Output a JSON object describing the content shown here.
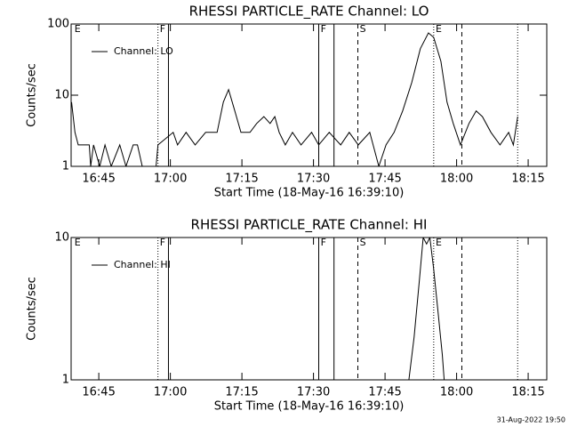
{
  "footer": "31-Aug-2022 19:50",
  "chart_data": [
    {
      "type": "line",
      "title": "RHESSI PARTICLE_RATE Channel: LO",
      "xlabel": "Start Time (18-May-16 16:39:10)",
      "ylabel": "Counts/sec",
      "log_y": true,
      "legend": "upper-left",
      "xlim": [
        999.2,
        1098.9
      ],
      "ylim": [
        1,
        100
      ],
      "xticks": [
        {
          "value": 1005,
          "label": "16:45"
        },
        {
          "value": 1020,
          "label": "17:00"
        },
        {
          "value": 1035,
          "label": "17:15"
        },
        {
          "value": 1050,
          "label": "17:30"
        },
        {
          "value": 1065,
          "label": "17:45"
        },
        {
          "value": 1080,
          "label": "18:00"
        },
        {
          "value": 1095,
          "label": "18:15"
        }
      ],
      "yticks": [
        1,
        10,
        100
      ],
      "flag_lines": [
        {
          "x": 1017.4,
          "style": "dotted"
        },
        {
          "x": 1019.6,
          "style": "solid"
        },
        {
          "x": 1051.1,
          "style": "solid"
        },
        {
          "x": 1054.3,
          "style": "solid"
        },
        {
          "x": 1059.3,
          "style": "dashed"
        },
        {
          "x": 1075.2,
          "style": "dotted"
        },
        {
          "x": 1081.1,
          "style": "dashed"
        },
        {
          "x": 1092.8,
          "style": "dotted"
        }
      ],
      "flag_labels": [
        {
          "x": 999.9,
          "label": "E"
        },
        {
          "x": 1017.8,
          "label": "F"
        },
        {
          "x": 1051.5,
          "label": "F"
        },
        {
          "x": 1059.7,
          "label": "S"
        },
        {
          "x": 1075.6,
          "label": "E"
        }
      ],
      "x": [
        999.3,
        1000.0,
        1000.7,
        1003.0,
        1003.3,
        1003.9,
        1005.2,
        1006.3,
        1007.6,
        1009.4,
        1010.7,
        1012.2,
        1013.1,
        1014.1,
        1017.0,
        1017.4,
        1020.6,
        1021.5,
        1023.3,
        1025.2,
        1027.4,
        1029.8,
        1031.1,
        1032.2,
        1033.5,
        1034.8,
        1036.7,
        1038.1,
        1039.6,
        1040.9,
        1041.9,
        1042.8,
        1044.1,
        1045.6,
        1047.4,
        1049.6,
        1051.1,
        1053.3,
        1055.7,
        1057.5,
        1059.4,
        1061.8,
        1063.7,
        1065.2,
        1066.9,
        1068.7,
        1070.6,
        1072.4,
        1074.1,
        1075.2,
        1076.7,
        1078.0,
        1079.3,
        1080.8,
        1082.6,
        1084.1,
        1085.4,
        1087.2,
        1089.1,
        1090.9,
        1091.9,
        1092.8
      ],
      "series": [
        {
          "name": "Channel: LO",
          "color": "#000000",
          "values": [
            8,
            3,
            2,
            2,
            1,
            2,
            1,
            2,
            1,
            2,
            1,
            2,
            2,
            1,
            1,
            2,
            3,
            2,
            3,
            2,
            3,
            3,
            8,
            12,
            6,
            3,
            3,
            4,
            5,
            4,
            5,
            3,
            2,
            3,
            2,
            3,
            2,
            3,
            2,
            3,
            2,
            3,
            1,
            2,
            3,
            6,
            15,
            45,
            75,
            65,
            30,
            8,
            4,
            2,
            4,
            6,
            5,
            3,
            2,
            3,
            2,
            5
          ]
        }
      ]
    },
    {
      "type": "line",
      "title": "RHESSI PARTICLE_RATE Channel: HI",
      "xlabel": "Start Time (18-May-16 16:39:10)",
      "ylabel": "Counts/sec",
      "log_y": true,
      "legend": "upper-left",
      "xlim": [
        999.2,
        1098.9
      ],
      "ylim": [
        1,
        10
      ],
      "xticks": [
        {
          "value": 1005,
          "label": "16:45"
        },
        {
          "value": 1020,
          "label": "17:00"
        },
        {
          "value": 1035,
          "label": "17:15"
        },
        {
          "value": 1050,
          "label": "17:30"
        },
        {
          "value": 1065,
          "label": "17:45"
        },
        {
          "value": 1080,
          "label": "18:00"
        },
        {
          "value": 1095,
          "label": "18:15"
        }
      ],
      "yticks": [
        1,
        10
      ],
      "flag_lines": [
        {
          "x": 1017.4,
          "style": "dotted"
        },
        {
          "x": 1019.6,
          "style": "solid"
        },
        {
          "x": 1051.1,
          "style": "solid"
        },
        {
          "x": 1054.3,
          "style": "solid"
        },
        {
          "x": 1059.3,
          "style": "dashed"
        },
        {
          "x": 1075.2,
          "style": "dotted"
        },
        {
          "x": 1081.1,
          "style": "dashed"
        },
        {
          "x": 1092.8,
          "style": "dotted"
        }
      ],
      "flag_labels": [
        {
          "x": 999.9,
          "label": "E"
        },
        {
          "x": 1017.8,
          "label": "F"
        },
        {
          "x": 1051.5,
          "label": "F"
        },
        {
          "x": 1059.7,
          "label": "S"
        },
        {
          "x": 1075.6,
          "label": "E"
        }
      ],
      "x": [
        1070.0,
        1071.1,
        1072.2,
        1073.0,
        1073.7,
        1074.4,
        1075.2,
        1076.1,
        1077.0,
        1077.4
      ],
      "series": [
        {
          "name": "Channel: HI",
          "color": "#000000",
          "values": [
            1,
            2,
            5,
            10,
            9,
            10,
            6,
            3,
            1.5,
            1
          ]
        }
      ]
    }
  ]
}
